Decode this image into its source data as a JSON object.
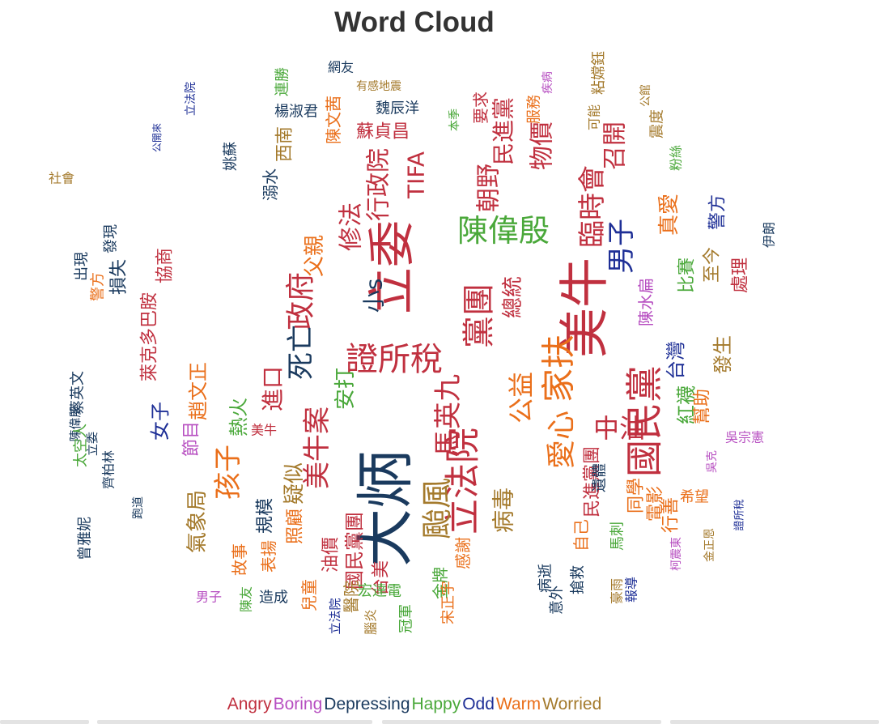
{
  "chart_data": {
    "type": "wordcloud",
    "title": "Word Cloud",
    "legend": [
      {
        "name": "Angry",
        "color": "#c0303f"
      },
      {
        "name": "Boring",
        "color": "#b74fc1"
      },
      {
        "name": "Depressing",
        "color": "#1a3a5e"
      },
      {
        "name": "Happy",
        "color": "#4aa83a"
      },
      {
        "name": "Odd",
        "color": "#1e2f96"
      },
      {
        "name": "Warm",
        "color": "#ea6f1a"
      },
      {
        "name": "Worried",
        "color": "#a47a2c"
      }
    ],
    "words": [
      {
        "text": "大炳",
        "category": "Depressing",
        "size": 72
      },
      {
        "text": "美牛",
        "category": "Angry",
        "size": 62
      },
      {
        "text": "立委",
        "category": "Angry",
        "size": 58
      },
      {
        "text": "國民黨",
        "category": "Angry",
        "size": 46
      },
      {
        "text": "家扶",
        "category": "Warm",
        "size": 42
      },
      {
        "text": "立法院",
        "category": "Angry",
        "size": 44
      },
      {
        "text": "證所稅",
        "category": "Angry",
        "size": 40
      },
      {
        "text": "黨團",
        "category": "Angry",
        "size": 40
      },
      {
        "text": "陳偉殷",
        "category": "Happy",
        "size": 38
      },
      {
        "text": "政府",
        "category": "Angry",
        "size": 36
      },
      {
        "text": "颱風",
        "category": "Worried",
        "size": 38
      },
      {
        "text": "愛心",
        "category": "Warm",
        "size": 36
      },
      {
        "text": "馬英九",
        "category": "Angry",
        "size": 34
      },
      {
        "text": "男子",
        "category": "Odd",
        "size": 34
      },
      {
        "text": "臨時會",
        "category": "Angry",
        "size": 34
      },
      {
        "text": "死亡",
        "category": "Depressing",
        "size": 34
      },
      {
        "text": "美牛案",
        "category": "Angry",
        "size": 34
      },
      {
        "text": "孩子",
        "category": "Warm",
        "size": 34
      },
      {
        "text": "公益",
        "category": "Warm",
        "size": 32
      },
      {
        "text": "中油",
        "category": "Angry",
        "size": 32
      },
      {
        "text": "行政院",
        "category": "Angry",
        "size": 30
      },
      {
        "text": "修法",
        "category": "Angry",
        "size": 30
      },
      {
        "text": "朝野",
        "category": "Angry",
        "size": 30
      },
      {
        "text": "物價",
        "category": "Angry",
        "size": 30
      },
      {
        "text": "召開",
        "category": "Angry",
        "size": 30
      },
      {
        "text": "民進黨",
        "category": "Angry",
        "size": 28
      },
      {
        "text": "TIFA",
        "category": "Angry",
        "size": 28
      },
      {
        "text": "小s",
        "category": "Depressing",
        "size": 28
      },
      {
        "text": "總統",
        "category": "Angry",
        "size": 26
      },
      {
        "text": "安打",
        "category": "Happy",
        "size": 26
      },
      {
        "text": "進口",
        "category": "Angry",
        "size": 28
      },
      {
        "text": "病毒",
        "category": "Worried",
        "size": 28
      },
      {
        "text": "父親",
        "category": "Warm",
        "size": 26
      },
      {
        "text": "氣象局",
        "category": "Worried",
        "size": 26
      },
      {
        "text": "疑似",
        "category": "Worried",
        "size": 26
      },
      {
        "text": "趙文正",
        "category": "Warm",
        "size": 24
      },
      {
        "text": "熱火",
        "category": "Happy",
        "size": 24
      },
      {
        "text": "照顧",
        "category": "Warm",
        "size": 22
      },
      {
        "text": "規模",
        "category": "Depressing",
        "size": 22
      },
      {
        "text": "國民黨團",
        "category": "Angry",
        "size": 24
      },
      {
        "text": "民進黨團",
        "category": "Angry",
        "size": 22
      },
      {
        "text": "台灣",
        "category": "Odd",
        "size": 24
      },
      {
        "text": "發生",
        "category": "Worried",
        "size": 24
      },
      {
        "text": "紅襪",
        "category": "Happy",
        "size": 24
      },
      {
        "text": "幫助",
        "category": "Warm",
        "size": 22
      },
      {
        "text": "節目",
        "category": "Boring",
        "size": 22
      },
      {
        "text": "女子",
        "category": "Odd",
        "size": 24
      },
      {
        "text": "油價",
        "category": "Angry",
        "size": 22
      },
      {
        "text": "台美",
        "category": "Angry",
        "size": 22
      },
      {
        "text": "感謝",
        "category": "Warm",
        "size": 20
      },
      {
        "text": "醫院",
        "category": "Worried",
        "size": 20
      },
      {
        "text": "故事",
        "category": "Warm",
        "size": 20
      },
      {
        "text": "表揚",
        "category": "Warm",
        "size": 20
      },
      {
        "text": "兒童",
        "category": "Warm",
        "size": 20
      },
      {
        "text": "宏達電",
        "category": "Happy",
        "size": 18
      },
      {
        "text": "金牌",
        "category": "Happy",
        "size": 20
      },
      {
        "text": "宋正宇",
        "category": "Warm",
        "size": 18
      },
      {
        "text": "損失",
        "category": "Depressing",
        "size": 22
      },
      {
        "text": "發現",
        "category": "Depressing",
        "size": 18
      },
      {
        "text": "協商",
        "category": "Angry",
        "size": 22
      },
      {
        "text": "萊克多巴胺",
        "category": "Angry",
        "size": 22
      },
      {
        "text": "陳文茜",
        "category": "Warm",
        "size": 20
      },
      {
        "text": "蘇貞昌",
        "category": "Angry",
        "size": 22
      },
      {
        "text": "西南",
        "category": "Worried",
        "size": 22
      },
      {
        "text": "溺水",
        "category": "Depressing",
        "size": 20
      },
      {
        "text": "姚蘇",
        "category": "Depressing",
        "size": 18
      },
      {
        "text": "真愛",
        "category": "Warm",
        "size": 26
      },
      {
        "text": "警方",
        "category": "Odd",
        "size": 22
      },
      {
        "text": "至今",
        "category": "Worried",
        "size": 22
      },
      {
        "text": "比賽",
        "category": "Happy",
        "size": 22
      },
      {
        "text": "處理",
        "category": "Angry",
        "size": 22
      },
      {
        "text": "陳水扁",
        "category": "Boring",
        "size": 20
      },
      {
        "text": "電影",
        "category": "Warm",
        "size": 22
      },
      {
        "text": "同學",
        "category": "Warm",
        "size": 22
      },
      {
        "text": "行善",
        "category": "Warm",
        "size": 22
      },
      {
        "text": "希望",
        "category": "Warm",
        "size": 18
      },
      {
        "text": "自己",
        "category": "Warm",
        "size": 20
      },
      {
        "text": "遺體",
        "category": "Depressing",
        "size": 18
      },
      {
        "text": "馬刺",
        "category": "Happy",
        "size": 18
      },
      {
        "text": "病逝",
        "category": "Depressing",
        "size": 18
      },
      {
        "text": "搶救",
        "category": "Depressing",
        "size": 18
      },
      {
        "text": "豪雨",
        "category": "Worried",
        "size": 16
      },
      {
        "text": "報導",
        "category": "Odd",
        "size": 16
      },
      {
        "text": "意外",
        "category": "Depressing",
        "size": 18
      },
      {
        "text": "造成",
        "category": "Depressing",
        "size": 18
      },
      {
        "text": "美牛",
        "category": "Angry",
        "size": 16
      },
      {
        "text": "男子",
        "category": "Boring",
        "size": 16
      },
      {
        "text": "陳友",
        "category": "Happy",
        "size": 16
      },
      {
        "text": "冠軍",
        "category": "Happy",
        "size": 18
      },
      {
        "text": "腦炎",
        "category": "Worried",
        "size": 16
      },
      {
        "text": "立法院",
        "category": "Odd",
        "size": 15
      },
      {
        "text": "陳偉殷",
        "category": "Depressing",
        "size": 15
      },
      {
        "text": "立委",
        "category": "Depressing",
        "size": 15
      },
      {
        "text": "警方",
        "category": "Warm",
        "size": 18
      },
      {
        "text": "出現",
        "category": "Depressing",
        "size": 18
      },
      {
        "text": "蔡英文",
        "category": "Depressing",
        "size": 18
      },
      {
        "text": "齊柏林",
        "category": "Depressing",
        "size": 16
      },
      {
        "text": "太空人",
        "category": "Happy",
        "size": 18
      },
      {
        "text": "跑道",
        "category": "Depressing",
        "size": 14
      },
      {
        "text": "曾雅妮",
        "category": "Depressing",
        "size": 18
      },
      {
        "text": "粉絲",
        "category": "Happy",
        "size": 16
      },
      {
        "text": "伊朗",
        "category": "Depressing",
        "size": 16
      },
      {
        "text": "吳宗憲",
        "category": "Boring",
        "size": 16
      },
      {
        "text": "柯震東",
        "category": "Boring",
        "size": 14
      },
      {
        "text": "金正恩",
        "category": "Worried",
        "size": 14
      },
      {
        "text": "吳克",
        "category": "Boring",
        "size": 14
      },
      {
        "text": "證所稅",
        "category": "Odd",
        "size": 13
      },
      {
        "text": "粘嫦鈺",
        "category": "Worried",
        "size": 18
      },
      {
        "text": "公館",
        "category": "Worried",
        "size": 14
      },
      {
        "text": "震度",
        "category": "Worried",
        "size": 18
      },
      {
        "text": "有感地震",
        "category": "Worried",
        "size": 14
      },
      {
        "text": "網友",
        "category": "Depressing",
        "size": 16
      },
      {
        "text": "魏辰洋",
        "category": "Depressing",
        "size": 18
      },
      {
        "text": "連勝",
        "category": "Happy",
        "size": 18
      },
      {
        "text": "楊淑君",
        "category": "Depressing",
        "size": 18
      },
      {
        "text": "公開來",
        "category": "Odd",
        "size": 12
      },
      {
        "text": "立法院",
        "category": "Odd",
        "size": 14
      },
      {
        "text": "社會",
        "category": "Worried",
        "size": 16
      },
      {
        "text": "服務",
        "category": "Warm",
        "size": 18
      },
      {
        "text": "可能",
        "category": "Worried",
        "size": 16
      },
      {
        "text": "要求",
        "category": "Angry",
        "size": 20
      },
      {
        "text": "本季",
        "category": "Happy",
        "size": 14
      },
      {
        "text": "疾病",
        "category": "Boring",
        "size": 14
      }
    ]
  }
}
